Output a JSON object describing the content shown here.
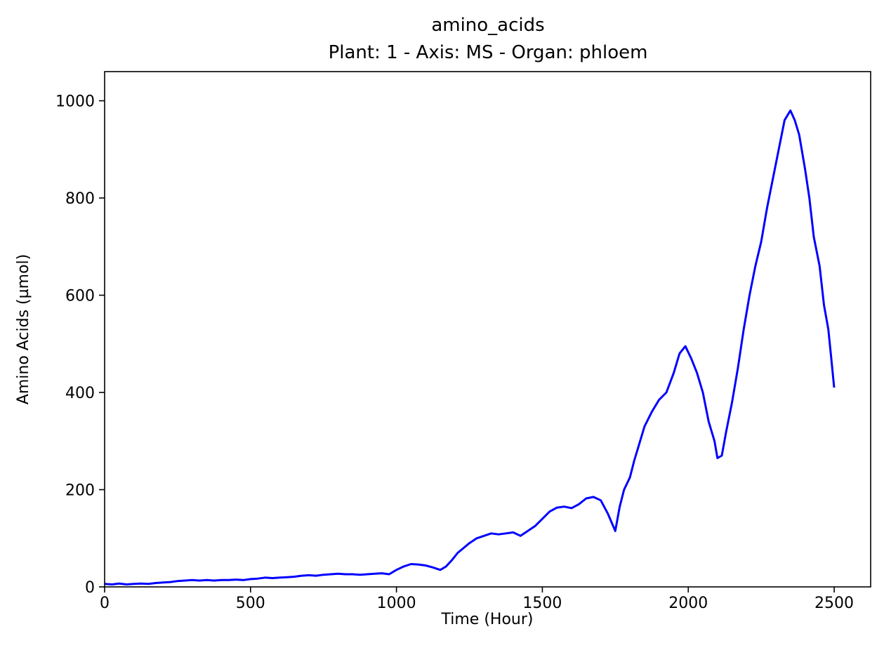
{
  "chart_data": {
    "type": "line",
    "title": "amino_acids",
    "subtitle": "Plant: 1 - Axis: MS - Organ: phloem",
    "xlabel": "Time (Hour)",
    "ylabel": "Amino Acids (µmol)",
    "xlim": [
      0,
      2625
    ],
    "ylim": [
      0,
      1060
    ],
    "xticks": [
      0,
      500,
      1000,
      1500,
      2000,
      2500
    ],
    "yticks": [
      0,
      200,
      400,
      600,
      800,
      1000
    ],
    "xtick_labels": [
      "0",
      "500",
      "1000",
      "1500",
      "2000",
      "2500"
    ],
    "ytick_labels": [
      "0",
      "200",
      "400",
      "600",
      "800",
      "1000"
    ],
    "grid": false,
    "legend": false,
    "series": [
      {
        "color": "#0000ff",
        "x": [
          0,
          25,
          50,
          75,
          100,
          125,
          150,
          175,
          200,
          225,
          250,
          275,
          300,
          325,
          350,
          375,
          400,
          425,
          450,
          475,
          500,
          525,
          550,
          575,
          600,
          625,
          650,
          675,
          700,
          725,
          750,
          775,
          800,
          825,
          850,
          875,
          900,
          925,
          950,
          975,
          1000,
          1025,
          1050,
          1075,
          1100,
          1125,
          1150,
          1170,
          1190,
          1210,
          1230,
          1250,
          1275,
          1300,
          1325,
          1350,
          1375,
          1400,
          1425,
          1450,
          1475,
          1500,
          1525,
          1550,
          1575,
          1600,
          1625,
          1650,
          1675,
          1700,
          1725,
          1750,
          1765,
          1780,
          1800,
          1815,
          1830,
          1850,
          1875,
          1900,
          1925,
          1950,
          1970,
          1990,
          2010,
          2030,
          2050,
          2070,
          2090,
          2100,
          2115,
          2130,
          2150,
          2170,
          2190,
          2210,
          2230,
          2250,
          2270,
          2290,
          2310,
          2330,
          2350,
          2365,
          2380,
          2400,
          2415,
          2430,
          2450,
          2465,
          2480,
          2490,
          2500
        ],
        "y": [
          6,
          5,
          7,
          5,
          6,
          7,
          6,
          8,
          9,
          10,
          12,
          13,
          14,
          13,
          14,
          13,
          14,
          14,
          15,
          14,
          16,
          17,
          19,
          18,
          19,
          20,
          21,
          23,
          24,
          23,
          25,
          26,
          27,
          26,
          26,
          25,
          26,
          27,
          28,
          26,
          35,
          42,
          47,
          46,
          44,
          40,
          35,
          42,
          55,
          70,
          80,
          90,
          100,
          105,
          110,
          108,
          110,
          112,
          105,
          115,
          125,
          140,
          155,
          163,
          165,
          162,
          170,
          182,
          185,
          178,
          150,
          115,
          165,
          200,
          225,
          260,
          290,
          330,
          360,
          385,
          400,
          440,
          480,
          495,
          470,
          440,
          400,
          340,
          300,
          265,
          270,
          320,
          380,
          450,
          530,
          600,
          660,
          710,
          780,
          840,
          900,
          960,
          980,
          960,
          930,
          860,
          800,
          720,
          660,
          580,
          530,
          470,
          410
        ]
      }
    ]
  }
}
